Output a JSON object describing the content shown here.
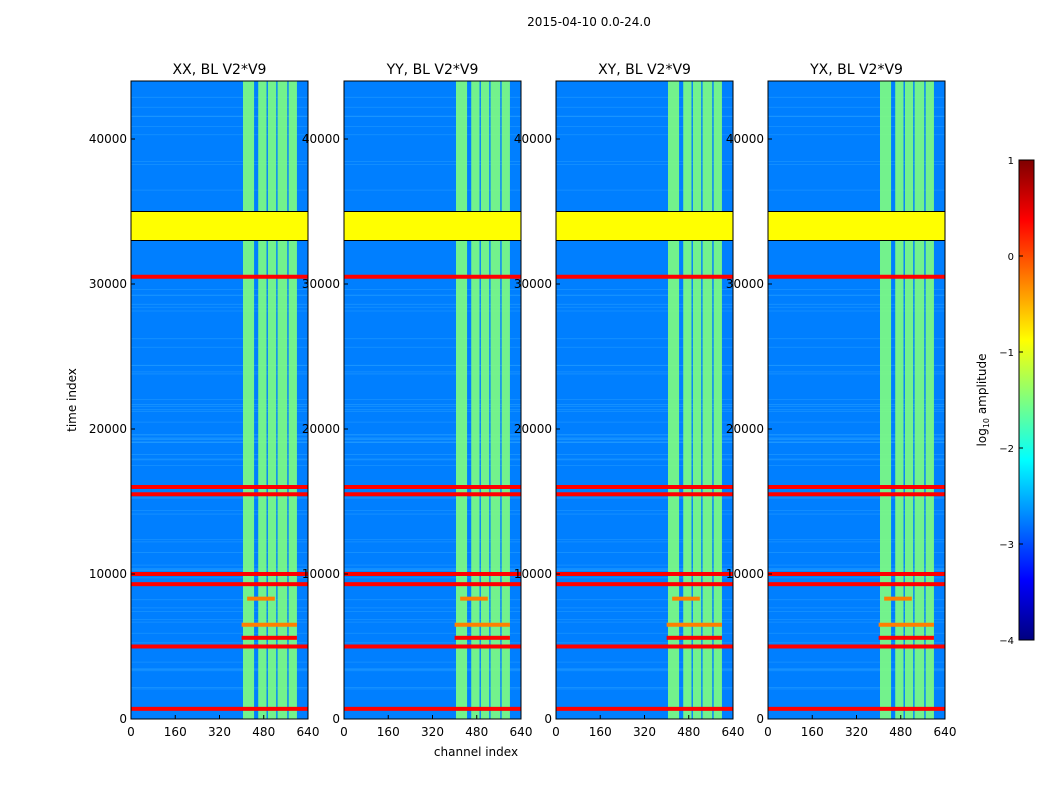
{
  "figure": {
    "suptitle": "2015-04-10 0.0-24.0",
    "xlabel": "channel index",
    "ylabel": "time index"
  },
  "colorbar": {
    "label_prefix": "log",
    "label_sub": "10",
    "label_suffix": " amplitude",
    "range": [
      -4,
      1
    ],
    "ticks": [
      1,
      0,
      -1,
      -2,
      -3,
      -4
    ],
    "tick_labels": [
      "1",
      "0",
      "−1",
      "−2",
      "−3",
      "−4"
    ],
    "colormap": "jet",
    "colors": [
      "#00007f",
      "#0000ff",
      "#007fff",
      "#00ffff",
      "#7fff7f",
      "#ffff00",
      "#ff7f00",
      "#ff0000",
      "#7f0000"
    ]
  },
  "chart_data": {
    "type": "heatmap",
    "x_range": [
      0,
      640
    ],
    "y_range": [
      0,
      44000
    ],
    "x_ticks": [
      0,
      160,
      320,
      480,
      640
    ],
    "y_ticks": [
      0,
      10000,
      20000,
      30000,
      40000
    ],
    "panels": [
      {
        "title": "XX, BL V2*V9",
        "polarization": "XX"
      },
      {
        "title": "YY, BL V2*V9",
        "polarization": "YY"
      },
      {
        "title": "XY, BL V2*V9",
        "polarization": "XY"
      },
      {
        "title": "YX, BL V2*V9",
        "polarization": "YX"
      }
    ],
    "background_log10_amplitude": -3.0,
    "flagged_block": {
      "time_start": 33000,
      "time_end": 35000,
      "log10_amplitude": -1.0
    },
    "rfi_channel_bands": [
      {
        "ch_start": 405,
        "ch_end": 445
      },
      {
        "ch_start": 460,
        "ch_end": 490
      },
      {
        "ch_start": 495,
        "ch_end": 525
      },
      {
        "ch_start": 530,
        "ch_end": 565
      },
      {
        "ch_start": 570,
        "ch_end": 600
      }
    ],
    "band_log10_amplitude": -1.5,
    "strong_rfi_rows": [
      {
        "time": 30500,
        "log10_amplitude": 0.2
      },
      {
        "time": 16000,
        "log10_amplitude": 0.2
      },
      {
        "time": 15500,
        "log10_amplitude": 0.2
      },
      {
        "time": 10000,
        "log10_amplitude": 0.2
      },
      {
        "time": 9300,
        "log10_amplitude": 0.2
      },
      {
        "time": 5000,
        "log10_amplitude": 0.2
      },
      {
        "time": 700,
        "log10_amplitude": 0.2
      }
    ],
    "bright_spots": [
      {
        "time": 6500,
        "ch_start": 400,
        "ch_end": 600,
        "log10_amplitude": 0.0
      },
      {
        "time": 5600,
        "ch_start": 400,
        "ch_end": 600,
        "log10_amplitude": 0.3
      },
      {
        "time": 8300,
        "ch_start": 420,
        "ch_end": 520,
        "log10_amplitude": -0.3
      }
    ]
  }
}
